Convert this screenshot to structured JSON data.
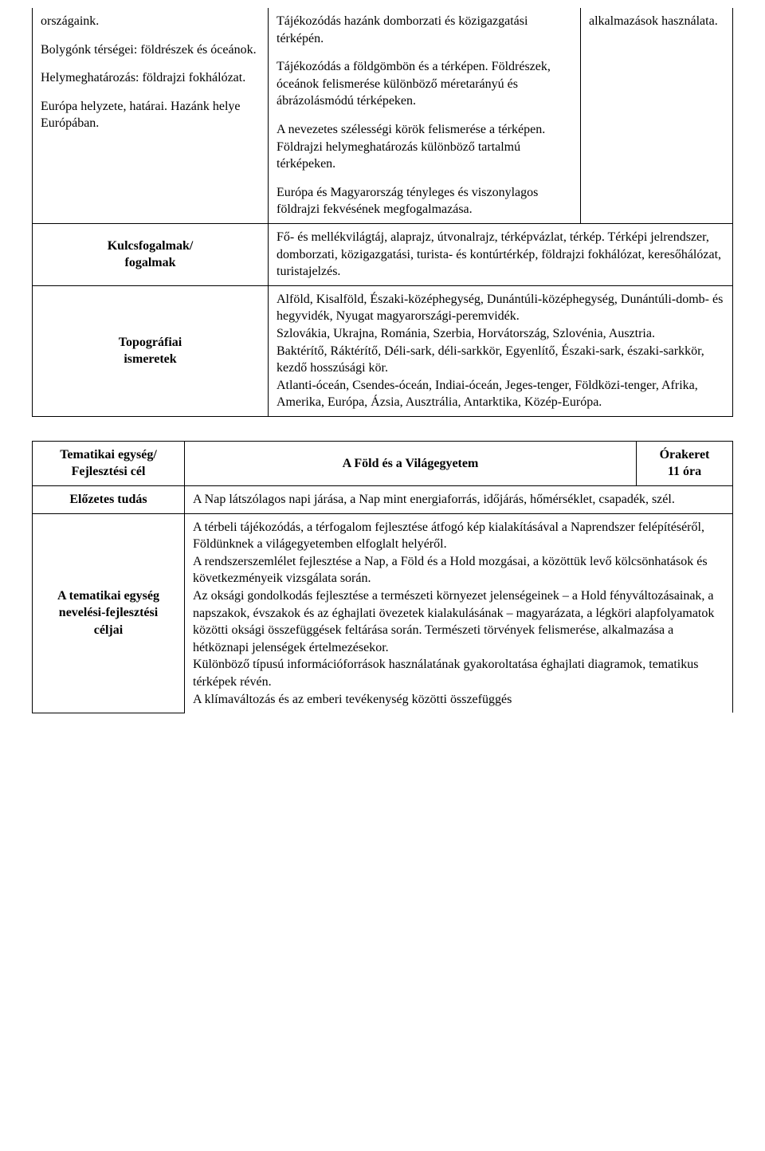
{
  "table1": {
    "row1": {
      "col1": {
        "p1": "országaink.",
        "p2": "Bolygónk térségei: földrészek és óceánok.",
        "p3": "Helymeghatározás: földrajzi fokhálózat.",
        "p4": "Európa helyzete, határai. Hazánk helye Európában."
      },
      "col2": {
        "p1": "Tájékozódás hazánk domborzati és közigazgatási térképén.",
        "p2": "Tájékozódás a földgömbön és a térképen. Földrészek, óceánok felismerése különböző méretarányú és ábrázolásmódú térképeken.",
        "p3": "A nevezetes szélességi körök felismerése a térképen. Földrajzi helymeghatározás különböző tartalmú térképeken.",
        "p4": "Európa és Magyarország tényleges és viszonylagos földrajzi fekvésének megfogalmazása."
      },
      "col3": {
        "p1": "alkalmazások használata."
      }
    },
    "row2": {
      "label_line1": "Kulcsfogalmak/",
      "label_line2": "fogalmak",
      "content": "Fő- és mellékvilágtáj, alaprajz, útvonalrajz, térképvázlat, térkép. Térképi jelrendszer, domborzati, közigazgatási, turista- és kontúrtérkép, földrajzi fokhálózat, keresőhálózat, turistajelzés."
    },
    "row3": {
      "label_line1": "Topográfiai",
      "label_line2": "ismeretek",
      "content_line1": "Alföld, Kisalföld, Északi-középhegység, Dunántúli-középhegység, Dunántúli-domb- és hegyvidék, Nyugat magyarországi-peremvidék.",
      "content_line2": "Szlovákia, Ukrajna, Románia, Szerbia, Horvátország, Szlovénia, Ausztria.",
      "content_line3": "Baktérítő, Ráktérítő, Déli-sark, déli-sarkkör, Egyenlítő, Északi-sark, északi-sarkkör, kezdő hosszúsági kör.",
      "content_line4": "Atlanti-óceán, Csendes-óceán, Indiai-óceán, Jeges-tenger, Földközi-tenger, Afrika, Amerika, Európa, Ázsia, Ausztrália, Antarktika, Közép-Európa."
    }
  },
  "table2": {
    "header": {
      "col1_line1": "Tematikai egység/",
      "col1_line2": "Fejlesztési cél",
      "col2": "A Föld és a Világegyetem",
      "col3_line1": "Órakeret",
      "col3_line2": "11 óra"
    },
    "row2": {
      "label": "Előzetes tudás",
      "content": "A Nap látszólagos napi járása, a Nap mint energiaforrás, időjárás, hőmérséklet, csapadék, szél."
    },
    "row3": {
      "label_line1": "A tematikai egység",
      "label_line2": "nevelési-fejlesztési",
      "label_line3": "céljai",
      "p1": "A térbeli tájékozódás, a térfogalom fejlesztése átfogó kép kialakításával a Naprendszer felépítéséről, Földünknek a világegyetemben elfoglalt helyéről.",
      "p2": "A rendszerszemlélet fejlesztése a Nap, a Föld és a Hold mozgásai, a közöttük levő kölcsönhatások és következményeik vizsgálata során.",
      "p3": "Az oksági gondolkodás fejlesztése a természeti környezet jelenségeinek – a Hold fényváltozásainak, a napszakok, évszakok és az éghajlati övezetek kialakulásának – magyarázata, a légköri alapfolyamatok közötti oksági összefüggések feltárása során. Természeti törvények felismerése, alkalmazása a hétköznapi jelenségek értelmezésekor.",
      "p4": "Különböző típusú információforrások használatának gyakoroltatása éghajlati diagramok, tematikus térképek révén.",
      "p5": "A klímaváltozás és az emberi tevékenység közötti összefüggés"
    }
  }
}
